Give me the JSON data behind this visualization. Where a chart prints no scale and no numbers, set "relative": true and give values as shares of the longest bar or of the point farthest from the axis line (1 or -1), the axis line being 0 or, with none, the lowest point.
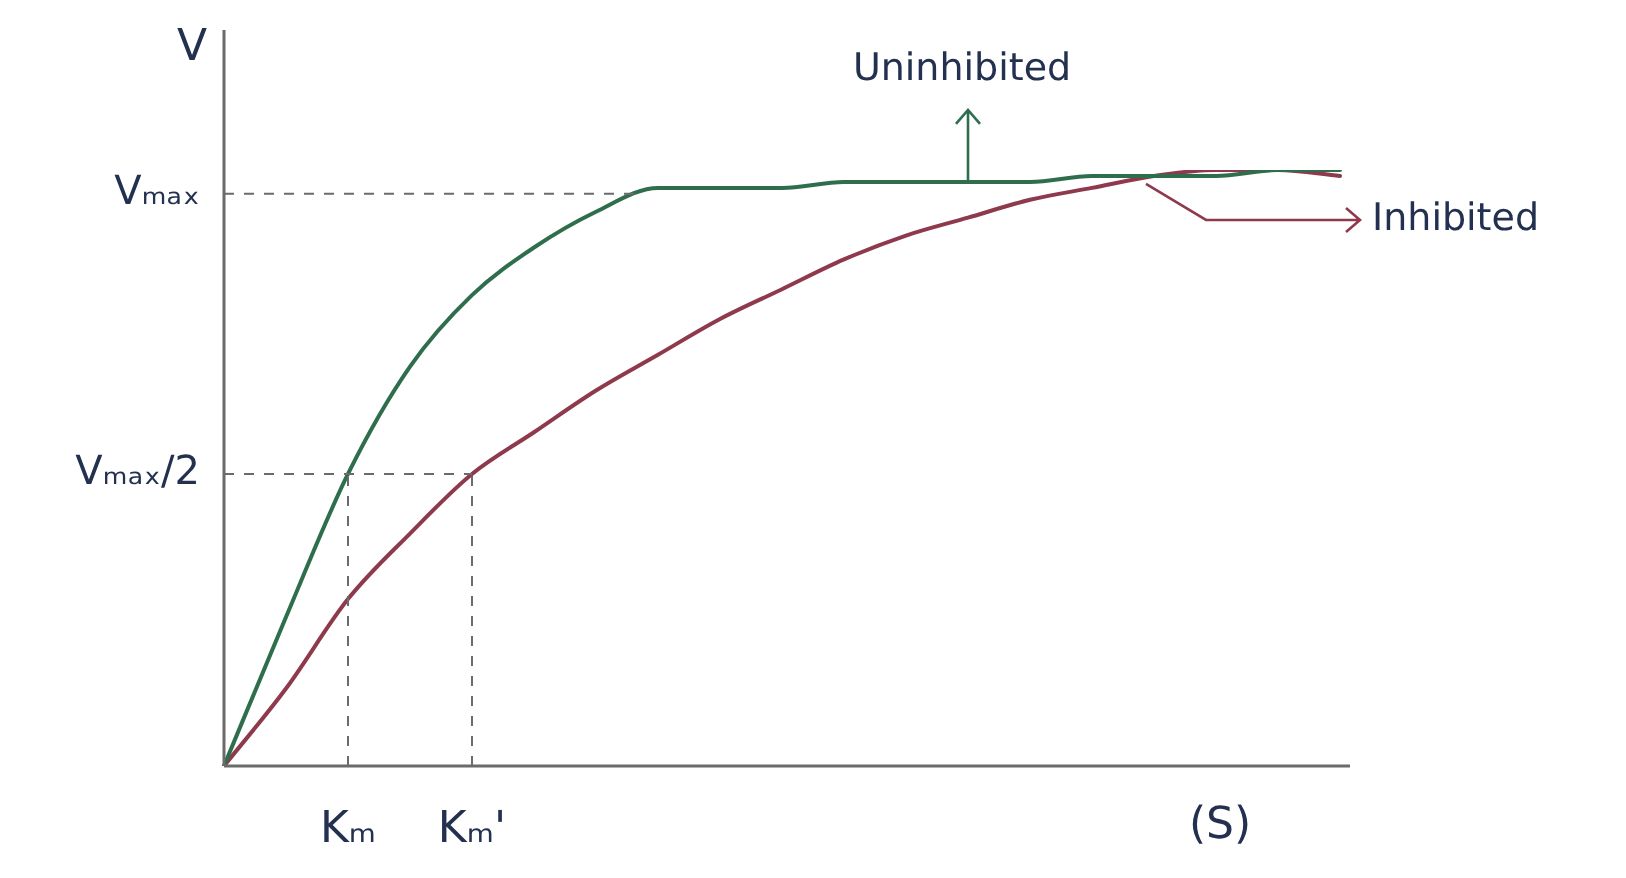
{
  "chart_data": {
    "type": "line",
    "relative": true,
    "xlabel": "(S)",
    "ylabel": "V",
    "categories": [
      null,
      null,
      "Kₘ",
      null,
      "Kₘ'",
      null,
      null,
      null,
      null,
      null,
      null,
      null,
      null,
      null,
      null,
      null,
      null,
      null,
      null
    ],
    "series": [
      {
        "name": "Uninhibited",
        "color": "#2f6e4c",
        "values": [
          0,
          0.25,
          0.49,
          0.67,
          0.79,
          0.87,
          0.93,
          0.97,
          0.97,
          0.97,
          0.98,
          0.98,
          0.98,
          0.98,
          0.99,
          0.99,
          0.99,
          1.0,
          1.0
        ]
      },
      {
        "name": "Inhibited",
        "color": "#8e3a4c",
        "values": [
          0,
          0.13,
          0.28,
          0.39,
          0.49,
          0.56,
          0.63,
          0.69,
          0.75,
          0.8,
          0.85,
          0.89,
          0.92,
          0.95,
          0.97,
          0.99,
          1.0,
          1.0,
          0.99
        ]
      }
    ],
    "ref_lines": [
      {
        "axis": "y",
        "value": 0.96,
        "label": "Vₘₐₓ"
      },
      {
        "axis": "y",
        "value": 0.49,
        "label": "Vₘₐₓ/2"
      },
      {
        "axis": "x",
        "value": "Kₘ"
      },
      {
        "axis": "x",
        "value": "Kₘ'"
      }
    ],
    "marker": "none",
    "line_style": "solid"
  }
}
